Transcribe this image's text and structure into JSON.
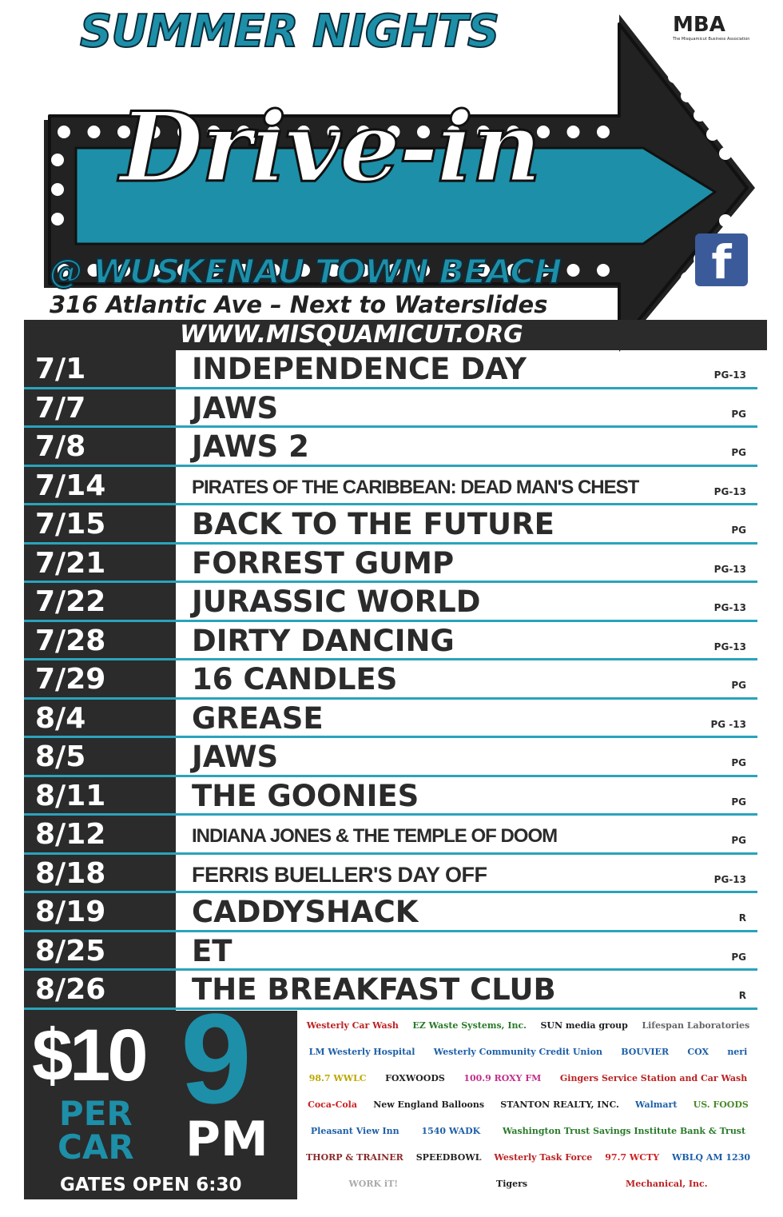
{
  "header": {
    "top_title": "SUMMER NIGHTS",
    "sign_title": "Drive-in",
    "location": "@ WUSKENAU TOWN BEACH",
    "address": "316 Atlantic Ave – Next to Waterslides",
    "website": "WWW.MISQUAMICUT.ORG",
    "org_logo": "MBA",
    "org_logo_subtitle": "The Misquamicut Business Association",
    "facebook_icon": "facebook-icon"
  },
  "colors": {
    "teal": "#1d8fa8",
    "dark": "#2b2b2b",
    "line": "#2aa3bc"
  },
  "schedule": [
    {
      "date": "7/1",
      "title": "INDEPENDENCE DAY",
      "rating": "PG-13"
    },
    {
      "date": "7/7",
      "title": "JAWS",
      "rating": "PG"
    },
    {
      "date": "7/8",
      "title": "JAWS 2",
      "rating": "PG"
    },
    {
      "date": "7/14",
      "title": "PIRATES OF THE CARIBBEAN: DEAD MAN'S CHEST",
      "rating": "PG-13"
    },
    {
      "date": "7/15",
      "title": "BACK TO THE FUTURE",
      "rating": "PG"
    },
    {
      "date": "7/21",
      "title": "FORREST GUMP",
      "rating": "PG-13"
    },
    {
      "date": "7/22",
      "title": "JURASSIC WORLD",
      "rating": "PG-13"
    },
    {
      "date": "7/28",
      "title": "DIRTY DANCING",
      "rating": "PG-13"
    },
    {
      "date": "7/29",
      "title": "16 CANDLES",
      "rating": "PG"
    },
    {
      "date": "8/4",
      "title": "GREASE",
      "rating": "PG -13"
    },
    {
      "date": "8/5",
      "title": "JAWS",
      "rating": "PG"
    },
    {
      "date": "8/11",
      "title": "THE GOONIES",
      "rating": "PG"
    },
    {
      "date": "8/12",
      "title": "INDIANA JONES & THE TEMPLE OF DOOM",
      "rating": "PG"
    },
    {
      "date": "8/18",
      "title": "FERRIS BUELLER'S DAY OFF",
      "rating": "PG-13"
    },
    {
      "date": "8/19",
      "title": "CADDYSHACK",
      "rating": "R"
    },
    {
      "date": "8/25",
      "title": "ET",
      "rating": "PG"
    },
    {
      "date": "8/26",
      "title": "THE BREAKFAST CLUB",
      "rating": "R"
    }
  ],
  "pricing": {
    "price": "$10",
    "per": "PER",
    "car": "CAR",
    "time": "9",
    "pm": "PM",
    "gates": "GATES OPEN 6:30"
  },
  "sponsors": [
    {
      "name": "Westerly Car Wash",
      "color": "#b22"
    },
    {
      "name": "EZ Waste Systems, Inc.",
      "color": "#2a7a2a"
    },
    {
      "name": "SUN media group",
      "color": "#222"
    },
    {
      "name": "Lifespan Laboratories",
      "color": "#666"
    },
    {
      "name": "LM Westerly Hospital",
      "color": "#1d5fa8"
    },
    {
      "name": "Westerly Community Credit Union",
      "color": "#1d5fa8"
    },
    {
      "name": "BOUVIER",
      "color": "#1d5fa8"
    },
    {
      "name": "COX",
      "color": "#1d5fa8"
    },
    {
      "name": "neri",
      "color": "#1d5fa8"
    },
    {
      "name": "98.7 WWLC",
      "color": "#bba800"
    },
    {
      "name": "FOXWOODS",
      "color": "#222"
    },
    {
      "name": "100.9 ROXY FM",
      "color": "#c0308a"
    },
    {
      "name": "Gingers Service Station and Car Wash",
      "color": "#b22"
    },
    {
      "name": "Coca-Cola",
      "color": "#c22"
    },
    {
      "name": "New England Balloons",
      "color": "#222"
    },
    {
      "name": "STANTON REALTY, INC.",
      "color": "#222"
    },
    {
      "name": "Walmart",
      "color": "#1d5fa8"
    },
    {
      "name": "US. FOODS",
      "color": "#4a8a2a"
    },
    {
      "name": "Pleasant View Inn",
      "color": "#1d5fa8"
    },
    {
      "name": "1540 WADK",
      "color": "#1d5fa8"
    },
    {
      "name": "Washington Trust Savings Institute Bank & Trust",
      "color": "#2a7a2a"
    },
    {
      "name": "THORP & TRAINER",
      "color": "#8a2a2a"
    },
    {
      "name": "SPEEDBOWL",
      "color": "#222"
    },
    {
      "name": "Westerly Task Force",
      "color": "#b22"
    },
    {
      "name": "97.7 WCTY",
      "color": "#c22"
    },
    {
      "name": "WBLQ AM 1230",
      "color": "#1d5fa8"
    },
    {
      "name": "WORK iT!",
      "color": "#aaa"
    },
    {
      "name": "Tigers",
      "color": "#222"
    },
    {
      "name": "Mechanical, Inc.",
      "color": "#b22"
    }
  ]
}
